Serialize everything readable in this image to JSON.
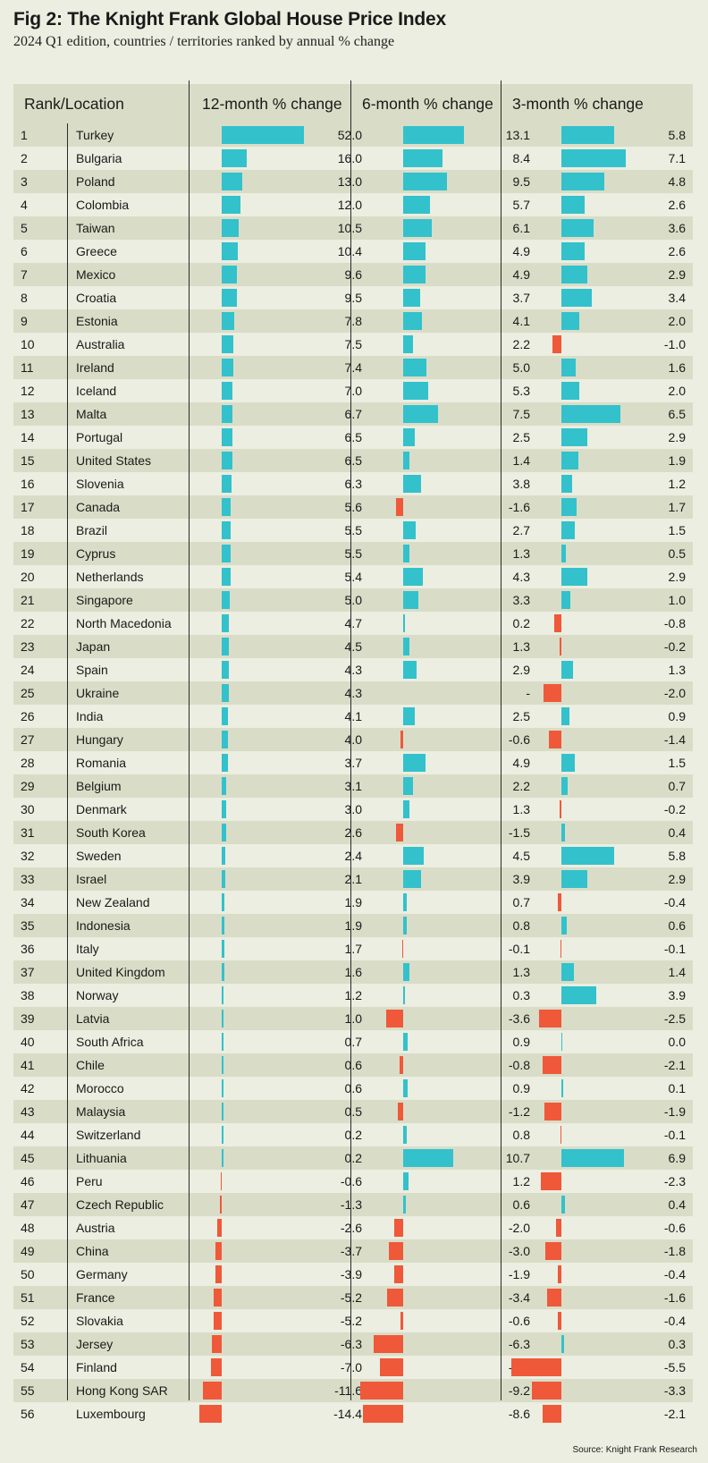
{
  "title": "Fig 2: The Knight Frank Global House Price Index",
  "subtitle": "2024 Q1 edition, countries / territories ranked by annual % change",
  "source": "Source: Knight Frank Research",
  "colors": {
    "positive": "#33c1cc",
    "negative": "#f0583a",
    "band": "#d9ddc7",
    "background": "#ebeee0"
  },
  "chart_data": {
    "type": "table",
    "columns": [
      "Rank/Location",
      "12-month % change",
      "6-month % change",
      "3-month % change"
    ],
    "rows": [
      {
        "rank": "1",
        "location": "Turkey",
        "m12": 52.0,
        "m6": 13.1,
        "m3": 5.8,
        "m12_text": "52.0",
        "m6_text": "13.1",
        "m3_text": "5.8"
      },
      {
        "rank": "2",
        "location": "Bulgaria",
        "m12": 16.0,
        "m6": 8.4,
        "m3": 7.1,
        "m12_text": "16.0",
        "m6_text": "8.4",
        "m3_text": "7.1"
      },
      {
        "rank": "3",
        "location": "Poland",
        "m12": 13.0,
        "m6": 9.5,
        "m3": 4.8,
        "m12_text": "13.0",
        "m6_text": "9.5",
        "m3_text": "4.8"
      },
      {
        "rank": "4",
        "location": "Colombia",
        "m12": 12.0,
        "m6": 5.7,
        "m3": 2.6,
        "m12_text": "12.0",
        "m6_text": "5.7",
        "m3_text": "2.6"
      },
      {
        "rank": "5",
        "location": "Taiwan",
        "m12": 10.5,
        "m6": 6.1,
        "m3": 3.6,
        "m12_text": "10.5",
        "m6_text": "6.1",
        "m3_text": "3.6"
      },
      {
        "rank": "6",
        "location": "Greece",
        "m12": 10.4,
        "m6": 4.9,
        "m3": 2.6,
        "m12_text": "10.4",
        "m6_text": "4.9",
        "m3_text": "2.6"
      },
      {
        "rank": "7",
        "location": "Mexico",
        "m12": 9.6,
        "m6": 4.9,
        "m3": 2.9,
        "m12_text": "9.6",
        "m6_text": "4.9",
        "m3_text": "2.9"
      },
      {
        "rank": "8",
        "location": "Croatia",
        "m12": 9.5,
        "m6": 3.7,
        "m3": 3.4,
        "m12_text": "9.5",
        "m6_text": "3.7",
        "m3_text": "3.4"
      },
      {
        "rank": "9",
        "location": "Estonia",
        "m12": 7.8,
        "m6": 4.1,
        "m3": 2.0,
        "m12_text": "7.8",
        "m6_text": "4.1",
        "m3_text": "2.0"
      },
      {
        "rank": "10",
        "location": "Australia",
        "m12": 7.5,
        "m6": 2.2,
        "m3": -1.0,
        "m12_text": "7.5",
        "m6_text": "2.2",
        "m3_text": "-1.0"
      },
      {
        "rank": "11",
        "location": "Ireland",
        "m12": 7.4,
        "m6": 5.0,
        "m3": 1.6,
        "m12_text": "7.4",
        "m6_text": "5.0",
        "m3_text": "1.6"
      },
      {
        "rank": "12",
        "location": "Iceland",
        "m12": 7.0,
        "m6": 5.3,
        "m3": 2.0,
        "m12_text": "7.0",
        "m6_text": "5.3",
        "m3_text": "2.0"
      },
      {
        "rank": "13",
        "location": "Malta",
        "m12": 6.7,
        "m6": 7.5,
        "m3": 6.5,
        "m12_text": "6.7",
        "m6_text": "7.5",
        "m3_text": "6.5"
      },
      {
        "rank": "14",
        "location": "Portugal",
        "m12": 6.5,
        "m6": 2.5,
        "m3": 2.9,
        "m12_text": "6.5",
        "m6_text": "2.5",
        "m3_text": "2.9"
      },
      {
        "rank": "15",
        "location": "United States",
        "m12": 6.5,
        "m6": 1.4,
        "m3": 1.9,
        "m12_text": "6.5",
        "m6_text": "1.4",
        "m3_text": "1.9"
      },
      {
        "rank": "16",
        "location": "Slovenia",
        "m12": 6.3,
        "m6": 3.8,
        "m3": 1.2,
        "m12_text": "6.3",
        "m6_text": "3.8",
        "m3_text": "1.2"
      },
      {
        "rank": "17",
        "location": "Canada",
        "m12": 5.6,
        "m6": -1.6,
        "m3": 1.7,
        "m12_text": "5.6",
        "m6_text": "-1.6",
        "m3_text": "1.7"
      },
      {
        "rank": "18",
        "location": "Brazil",
        "m12": 5.5,
        "m6": 2.7,
        "m3": 1.5,
        "m12_text": "5.5",
        "m6_text": "2.7",
        "m3_text": "1.5"
      },
      {
        "rank": "19",
        "location": "Cyprus",
        "m12": 5.5,
        "m6": 1.3,
        "m3": 0.5,
        "m12_text": "5.5",
        "m6_text": "1.3",
        "m3_text": "0.5"
      },
      {
        "rank": "20",
        "location": "Netherlands",
        "m12": 5.4,
        "m6": 4.3,
        "m3": 2.9,
        "m12_text": "5.4",
        "m6_text": "4.3",
        "m3_text": "2.9"
      },
      {
        "rank": "21",
        "location": "Singapore",
        "m12": 5.0,
        "m6": 3.3,
        "m3": 1.0,
        "m12_text": "5.0",
        "m6_text": "3.3",
        "m3_text": "1.0"
      },
      {
        "rank": "22",
        "location": "North Macedonia",
        "m12": 4.7,
        "m6": 0.2,
        "m3": -0.8,
        "m12_text": "4.7",
        "m6_text": "0.2",
        "m3_text": "-0.8"
      },
      {
        "rank": "23",
        "location": "Japan",
        "m12": 4.5,
        "m6": 1.3,
        "m3": -0.2,
        "m12_text": "4.5",
        "m6_text": "1.3",
        "m3_text": "-0.2"
      },
      {
        "rank": "24",
        "location": "Spain",
        "m12": 4.3,
        "m6": 2.9,
        "m3": 1.3,
        "m12_text": "4.3",
        "m6_text": "2.9",
        "m3_text": "1.3"
      },
      {
        "rank": "25",
        "location": "Ukraine",
        "m12": 4.3,
        "m6": null,
        "m3": -2.0,
        "m12_text": "4.3",
        "m6_text": "-",
        "m3_text": "-2.0"
      },
      {
        "rank": "26",
        "location": "India",
        "m12": 4.1,
        "m6": 2.5,
        "m3": 0.9,
        "m12_text": "4.1",
        "m6_text": "2.5",
        "m3_text": "0.9"
      },
      {
        "rank": "27",
        "location": "Hungary",
        "m12": 4.0,
        "m6": -0.6,
        "m3": -1.4,
        "m12_text": "4.0",
        "m6_text": "-0.6",
        "m3_text": "-1.4"
      },
      {
        "rank": "28",
        "location": "Romania",
        "m12": 3.7,
        "m6": 4.9,
        "m3": 1.5,
        "m12_text": "3.7",
        "m6_text": "4.9",
        "m3_text": "1.5"
      },
      {
        "rank": "29",
        "location": "Belgium",
        "m12": 3.1,
        "m6": 2.2,
        "m3": 0.7,
        "m12_text": "3.1",
        "m6_text": "2.2",
        "m3_text": "0.7"
      },
      {
        "rank": "30",
        "location": "Denmark",
        "m12": 3.0,
        "m6": 1.3,
        "m3": -0.2,
        "m12_text": "3.0",
        "m6_text": "1.3",
        "m3_text": "-0.2"
      },
      {
        "rank": "31",
        "location": "South Korea",
        "m12": 2.6,
        "m6": -1.5,
        "m3": 0.4,
        "m12_text": "2.6",
        "m6_text": "-1.5",
        "m3_text": "0.4"
      },
      {
        "rank": "32",
        "location": "Sweden",
        "m12": 2.4,
        "m6": 4.5,
        "m3": 5.8,
        "m12_text": "2.4",
        "m6_text": "4.5",
        "m3_text": "5.8"
      },
      {
        "rank": "33",
        "location": "Israel",
        "m12": 2.1,
        "m6": 3.9,
        "m3": 2.9,
        "m12_text": "2.1",
        "m6_text": "3.9",
        "m3_text": "2.9"
      },
      {
        "rank": "34",
        "location": "New Zealand",
        "m12": 1.9,
        "m6": 0.7,
        "m3": -0.4,
        "m12_text": "1.9",
        "m6_text": "0.7",
        "m3_text": "-0.4"
      },
      {
        "rank": "35",
        "location": "Indonesia",
        "m12": 1.9,
        "m6": 0.8,
        "m3": 0.6,
        "m12_text": "1.9",
        "m6_text": "0.8",
        "m3_text": "0.6"
      },
      {
        "rank": "36",
        "location": "Italy",
        "m12": 1.7,
        "m6": -0.1,
        "m3": -0.1,
        "m12_text": "1.7",
        "m6_text": "-0.1",
        "m3_text": "-0.1"
      },
      {
        "rank": "37",
        "location": "United Kingdom",
        "m12": 1.6,
        "m6": 1.3,
        "m3": 1.4,
        "m12_text": "1.6",
        "m6_text": "1.3",
        "m3_text": "1.4"
      },
      {
        "rank": "38",
        "location": "Norway",
        "m12": 1.2,
        "m6": 0.3,
        "m3": 3.9,
        "m12_text": "1.2",
        "m6_text": "0.3",
        "m3_text": "3.9"
      },
      {
        "rank": "39",
        "location": "Latvia",
        "m12": 1.0,
        "m6": -3.6,
        "m3": -2.5,
        "m12_text": "1.0",
        "m6_text": "-3.6",
        "m3_text": "-2.5"
      },
      {
        "rank": "40",
        "location": "South Africa",
        "m12": 0.7,
        "m6": 0.9,
        "m3": 0.0,
        "m12_text": "0.7",
        "m6_text": "0.9",
        "m3_text": "0.0"
      },
      {
        "rank": "41",
        "location": "Chile",
        "m12": 0.6,
        "m6": -0.8,
        "m3": -2.1,
        "m12_text": "0.6",
        "m6_text": "-0.8",
        "m3_text": "-2.1"
      },
      {
        "rank": "42",
        "location": "Morocco",
        "m12": 0.6,
        "m6": 0.9,
        "m3": 0.1,
        "m12_text": "0.6",
        "m6_text": "0.9",
        "m3_text": "0.1"
      },
      {
        "rank": "43",
        "location": "Malaysia",
        "m12": 0.5,
        "m6": -1.2,
        "m3": -1.9,
        "m12_text": "0.5",
        "m6_text": "-1.2",
        "m3_text": "-1.9"
      },
      {
        "rank": "44",
        "location": "Switzerland",
        "m12": 0.2,
        "m6": 0.8,
        "m3": -0.1,
        "m12_text": "0.2",
        "m6_text": "0.8",
        "m3_text": "-0.1"
      },
      {
        "rank": "45",
        "location": "Lithuania",
        "m12": 0.2,
        "m6": 10.7,
        "m3": 6.9,
        "m12_text": "0.2",
        "m6_text": "10.7",
        "m3_text": "6.9"
      },
      {
        "rank": "46",
        "location": "Peru",
        "m12": -0.6,
        "m6": 1.2,
        "m3": -2.3,
        "m12_text": "-0.6",
        "m6_text": "1.2",
        "m3_text": "-2.3"
      },
      {
        "rank": "47",
        "location": "Czech Republic",
        "m12": -1.3,
        "m6": 0.6,
        "m3": 0.4,
        "m12_text": "-1.3",
        "m6_text": "0.6",
        "m3_text": "0.4"
      },
      {
        "rank": "48",
        "location": "Austria",
        "m12": -2.6,
        "m6": -2.0,
        "m3": -0.6,
        "m12_text": "-2.6",
        "m6_text": "-2.0",
        "m3_text": "-0.6"
      },
      {
        "rank": "49",
        "location": "China",
        "m12": -3.7,
        "m6": -3.0,
        "m3": -1.8,
        "m12_text": "-3.7",
        "m6_text": "-3.0",
        "m3_text": "-1.8"
      },
      {
        "rank": "50",
        "location": "Germany",
        "m12": -3.9,
        "m6": -1.9,
        "m3": -0.4,
        "m12_text": "-3.9",
        "m6_text": "-1.9",
        "m3_text": "-0.4"
      },
      {
        "rank": "51",
        "location": "France",
        "m12": -5.2,
        "m6": -3.4,
        "m3": -1.6,
        "m12_text": "-5.2",
        "m6_text": "-3.4",
        "m3_text": "-1.6"
      },
      {
        "rank": "52",
        "location": "Slovakia",
        "m12": -5.2,
        "m6": -0.6,
        "m3": -0.4,
        "m12_text": "-5.2",
        "m6_text": "-0.6",
        "m3_text": "-0.4"
      },
      {
        "rank": "53",
        "location": "Jersey",
        "m12": -6.3,
        "m6": -6.3,
        "m3": 0.3,
        "m12_text": "-6.3",
        "m6_text": "-6.3",
        "m3_text": "0.3"
      },
      {
        "rank": "54",
        "location": "Finland",
        "m12": -7.0,
        "m6": -5.0,
        "m3": -5.5,
        "m12_text": "-7.0",
        "m6_text": "-5.0",
        "m3_text": "-5.5"
      },
      {
        "rank": "55",
        "location": "Hong Kong SAR",
        "m12": -11.6,
        "m6": -9.2,
        "m3": -3.3,
        "m12_text": "-11.6",
        "m6_text": "-9.2",
        "m3_text": "-3.3"
      },
      {
        "rank": "56",
        "location": "Luxembourg",
        "m12": -14.4,
        "m6": -8.6,
        "m3": -2.1,
        "m12_text": "-14.4",
        "m6_text": "-8.6",
        "m3_text": "-2.1"
      }
    ]
  }
}
